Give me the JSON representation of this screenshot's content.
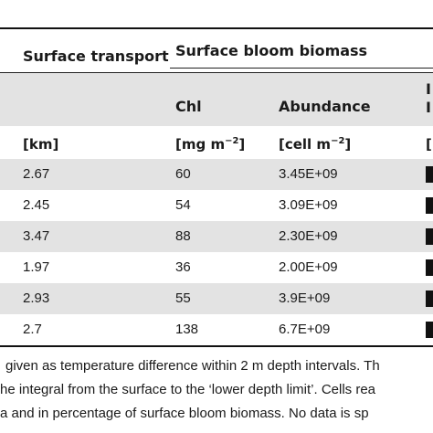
{
  "table": {
    "group_header_left": "Surface transport",
    "group_header_right": "Surface bloom biomass",
    "col_chl": "Chl",
    "col_abundance": "Abundance",
    "col_extra_top": "I",
    "col_extra_bottom": "I",
    "unit_km": "[km]",
    "unit_chl_prefix": "[mg m",
    "unit_chl_exp": "−2",
    "unit_chl_suffix": "]",
    "unit_cell_prefix": "[cell m",
    "unit_cell_exp": "−2",
    "unit_cell_suffix": "]",
    "rows": [
      {
        "transport": "2.67",
        "chl": "60",
        "abundance": "3.45E+09"
      },
      {
        "transport": "2.45",
        "chl": "54",
        "abundance": "3.09E+09"
      },
      {
        "transport": "3.47",
        "chl": "88",
        "abundance": "2.30E+09"
      },
      {
        "transport": "1.97",
        "chl": "36",
        "abundance": "2.00E+09"
      },
      {
        "transport": "2.93",
        "chl": "55",
        "abundance": "3.9E+09"
      },
      {
        "transport": "2.7",
        "chl": "138",
        "abundance": "6.7E+09"
      }
    ]
  },
  "footnotes": [
    "given as temperature difference within 2 m depth intervals. Th",
    "he integral from the surface to the ‘lower depth limit’. Cells rea",
    "a and in percentage of surface bloom biomass. No data is sp"
  ]
}
